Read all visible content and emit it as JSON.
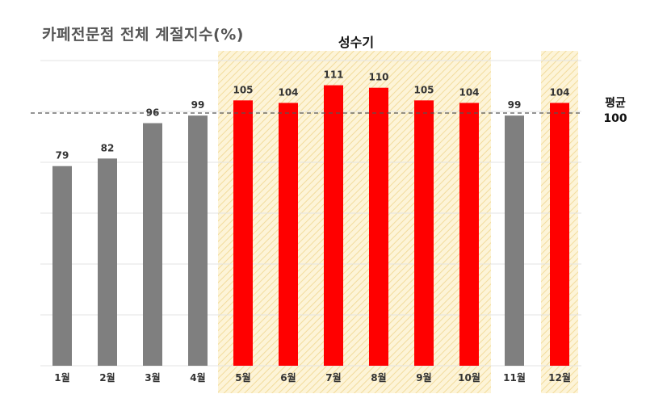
{
  "chart_data": {
    "type": "bar",
    "title": "카페전문점 전체 계절지수(%)",
    "categories": [
      "1월",
      "2월",
      "3월",
      "4월",
      "5월",
      "6월",
      "7월",
      "8월",
      "9월",
      "10월",
      "11월",
      "12월"
    ],
    "values": [
      79,
      82,
      96,
      99,
      105,
      104,
      111,
      110,
      105,
      104,
      99,
      104
    ],
    "ylim": [
      0,
      130
    ],
    "grid": true,
    "colors": {
      "normal": "#7f7f7f",
      "peak": "#ff0000",
      "band": "#fdf3d3",
      "band_stripe": "#f4dfa0"
    },
    "peak_months": [
      "5월",
      "6월",
      "7월",
      "8월",
      "9월",
      "10월",
      "12월"
    ],
    "peak_label": "성수기",
    "average": {
      "value": 100,
      "label_line1": "평균",
      "label_line2": "100"
    }
  }
}
